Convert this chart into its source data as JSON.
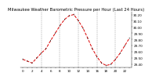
{
  "title": "Milwaukee Weather Barometric Pressure per Hour (Last 24 Hours)",
  "hours": [
    0,
    1,
    2,
    3,
    4,
    5,
    6,
    7,
    8,
    9,
    10,
    11,
    12,
    13,
    14,
    15,
    16,
    17,
    18,
    19,
    20,
    21,
    22,
    23
  ],
  "pressure": [
    29.48,
    29.45,
    29.42,
    29.5,
    29.58,
    29.65,
    29.78,
    29.9,
    30.02,
    30.12,
    30.18,
    30.2,
    30.1,
    29.98,
    29.82,
    29.65,
    29.52,
    29.42,
    29.38,
    29.4,
    29.48,
    29.58,
    29.7,
    29.82
  ],
  "line_color": "#dd0000",
  "marker_color": "#111111",
  "bg_color": "#ffffff",
  "grid_color": "#999999",
  "ylim_min": 29.35,
  "ylim_max": 30.25,
  "tick_interval": 0.1,
  "vgrid_positions": [
    4,
    8,
    12,
    16,
    20
  ],
  "title_fontsize": 3.8,
  "tick_fontsize": 3.0,
  "line_width": 0.7,
  "marker_size": 2.0
}
